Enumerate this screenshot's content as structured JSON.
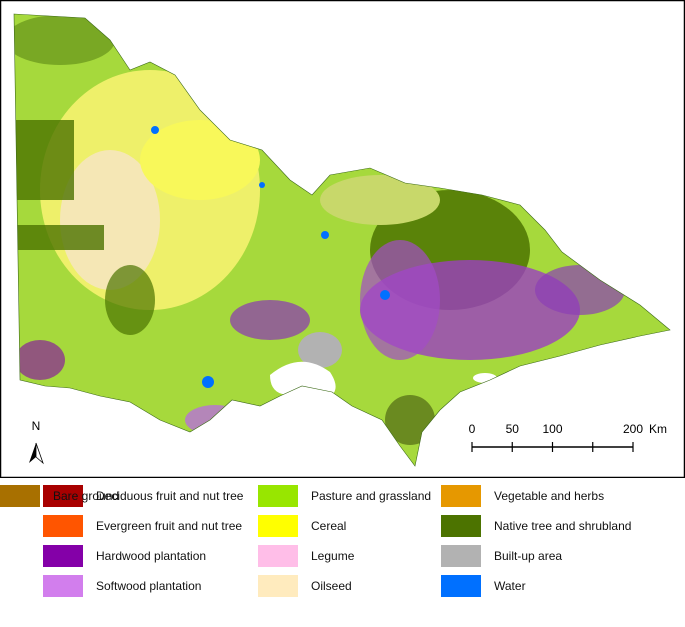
{
  "map": {
    "north_label": "N",
    "scale_bar": {
      "ticks": [
        0,
        50,
        100,
        150,
        200
      ],
      "tick_labels": [
        "0",
        "50",
        "100",
        null,
        "200"
      ],
      "unit": "Km"
    },
    "legend": [
      {
        "label": "Deciduous fruit and nut tree",
        "color": "#a80000"
      },
      {
        "label": "Evergreen fruit and nut tree",
        "color": "#ff5500"
      },
      {
        "label": "Hardwood plantation",
        "color": "#8400a8"
      },
      {
        "label": "Softwood plantation",
        "color": "#d27eed"
      },
      {
        "label": "Pasture and grassland",
        "color": "#98e600"
      },
      {
        "label": "Cereal",
        "color": "#ffff00"
      },
      {
        "label": "Legume",
        "color": "#ffbee8"
      },
      {
        "label": "Oilseed",
        "color": "#ffebbe"
      },
      {
        "label": "Vegetable and herbs",
        "color": "#e69800"
      },
      {
        "label": "Native tree and shrubland",
        "color": "#4c7300"
      },
      {
        "label": "Built-up area",
        "color": "#b2b2b2"
      },
      {
        "label": "Water",
        "color": "#0070ff"
      },
      {
        "label": "Bare ground",
        "color": "#a87000"
      }
    ]
  }
}
